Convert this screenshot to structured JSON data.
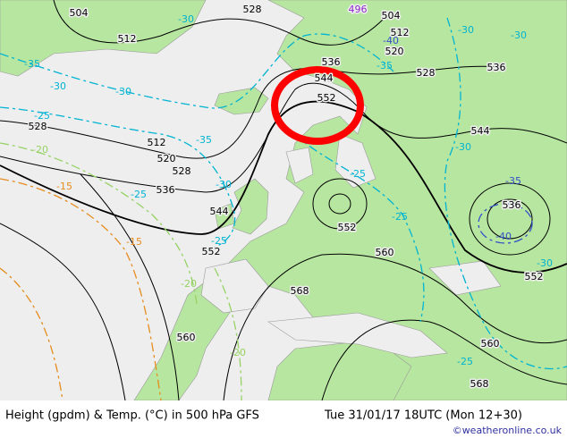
{
  "map": {
    "height_labels": [
      "504",
      "528",
      "496",
      "504",
      "512",
      "512",
      "520",
      "528",
      "536",
      "536",
      "544",
      "552",
      "528",
      "512",
      "520",
      "528",
      "536",
      "544",
      "544",
      "552",
      "552",
      "560",
      "560",
      "568",
      "536",
      "552",
      "560",
      "568"
    ],
    "temperature_labels": [
      "-30",
      "-30",
      "-30",
      "-35",
      "-35",
      "-30",
      "-30",
      "-25",
      "-20",
      "-15",
      "-25",
      "-30",
      "-25",
      "-20",
      "-15",
      "-25",
      "-25",
      "-30",
      "-35",
      "-40",
      "-30",
      "-25",
      "-20",
      "-40",
      "-35"
    ]
  },
  "footer": {
    "title": "Height (gpdm) & Temp. (°C) in 500 hPa GFS",
    "time": "Tue 31/01/17 18UTC (Mon 12+30)",
    "credit": "©weatheronline.co.uk"
  }
}
